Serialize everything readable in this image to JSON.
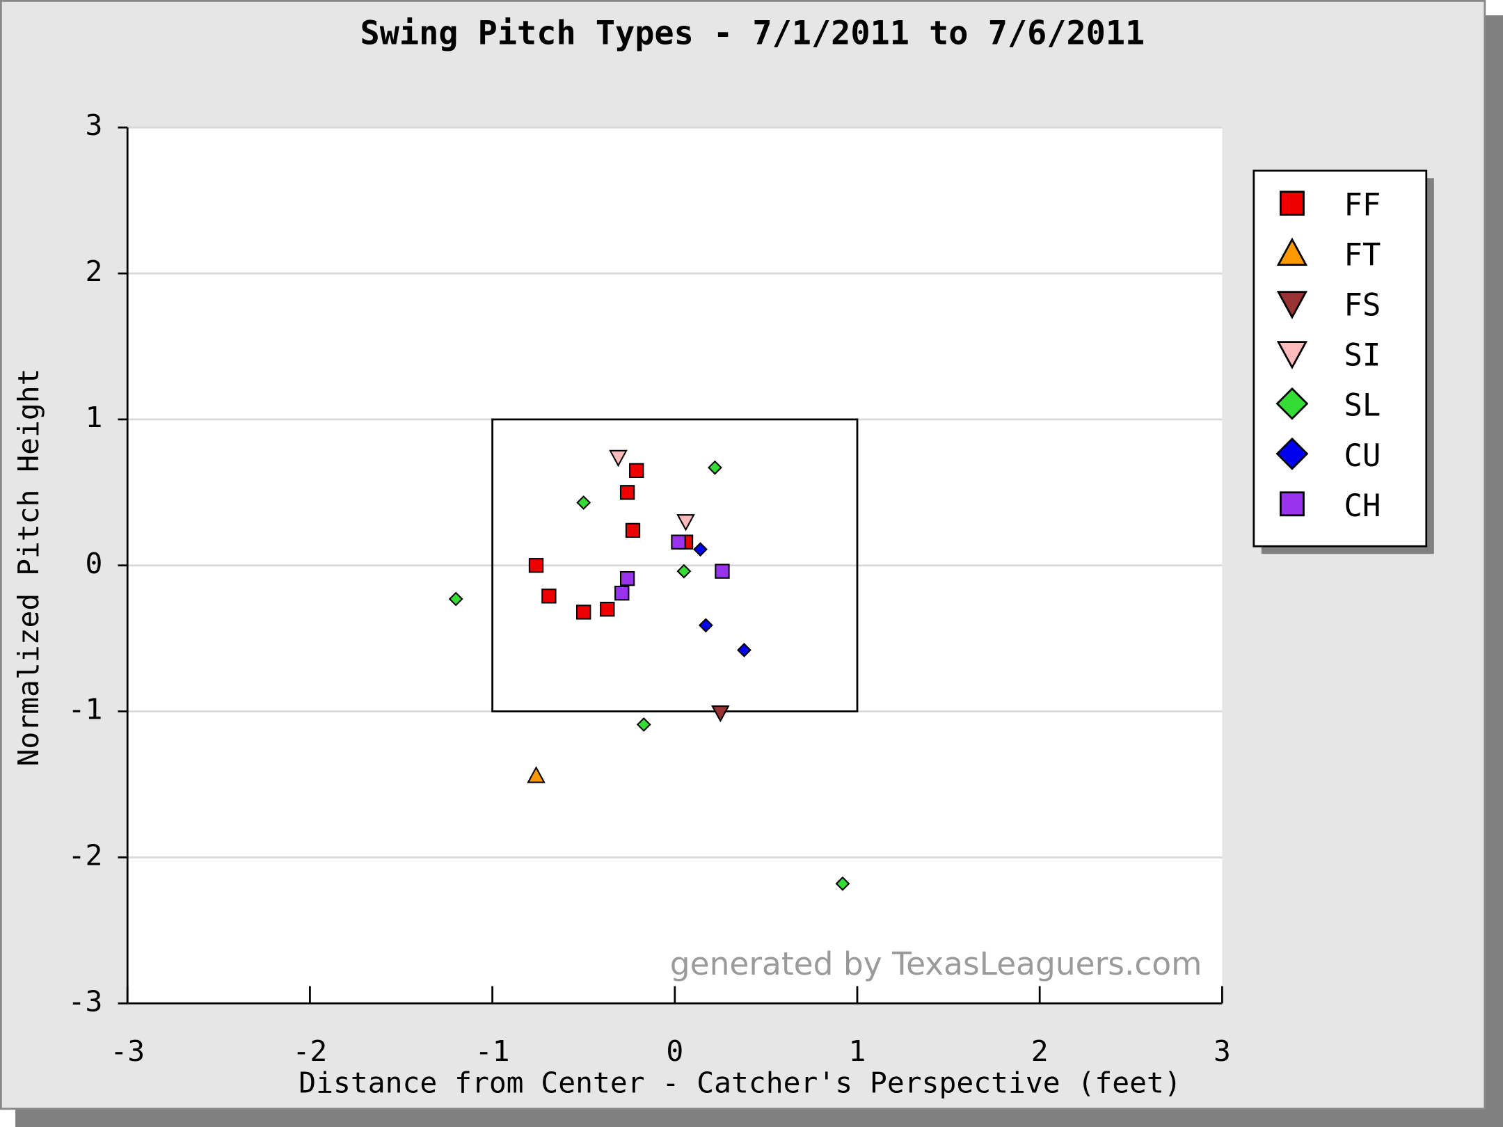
{
  "chart_data": {
    "type": "scatter",
    "title": "Swing Pitch Types - 7/1/2011 to 7/6/2011",
    "x_label": "Distance from Center - Catcher's Perspective (feet)",
    "y_label": "Normalized Pitch Height",
    "watermark": "generated by TexasLeaguers.com",
    "xlim": [
      -3,
      3
    ],
    "ylim": [
      -3,
      3
    ],
    "xticks": [
      -3,
      -2,
      -1,
      0,
      1,
      2,
      3
    ],
    "yticks": [
      -3,
      -2,
      -1,
      0,
      1,
      2,
      3
    ],
    "grid": true,
    "legend": "right",
    "strike_zone": {
      "x": [
        -1,
        1
      ],
      "y": [
        -1,
        1
      ]
    },
    "series": [
      {
        "name": "FF",
        "color": "#ee0000",
        "marker": "square",
        "x": [
          -0.76,
          -0.69,
          -0.5,
          -0.37,
          -0.26,
          -0.21,
          -0.23,
          0.06
        ],
        "y": [
          0,
          -0.21,
          -0.32,
          -0.3,
          0.5,
          0.65,
          0.24,
          0.16
        ]
      },
      {
        "name": "FT",
        "color": "#ff9900",
        "marker": "triangle-up",
        "x": [
          -0.76
        ],
        "y": [
          -1.44
        ]
      },
      {
        "name": "FS",
        "color": "#993333",
        "marker": "triangle-down",
        "x": [
          0.25
        ],
        "y": [
          -1.01
        ]
      },
      {
        "name": "SI",
        "color": "#ffbbbb",
        "marker": "triangle-down",
        "x": [
          -0.31,
          0.06
        ],
        "y": [
          0.74,
          0.3
        ]
      },
      {
        "name": "SL",
        "color": "#33dd33",
        "marker": "diamond",
        "x": [
          -0.5,
          0.22,
          0.05,
          -1.2,
          -0.17,
          0.92
        ],
        "y": [
          0.43,
          0.67,
          -0.04,
          -0.23,
          -1.09,
          -2.18
        ]
      },
      {
        "name": "CU",
        "color": "#0000ee",
        "marker": "diamond",
        "x": [
          0.14,
          0.17,
          0.38
        ],
        "y": [
          0.11,
          -0.41,
          -0.58
        ]
      },
      {
        "name": "CH",
        "color": "#9933ee",
        "marker": "square",
        "x": [
          0.02,
          -0.26,
          -0.29,
          0.26
        ],
        "y": [
          0.16,
          -0.09,
          -0.19,
          -0.04
        ]
      }
    ]
  }
}
